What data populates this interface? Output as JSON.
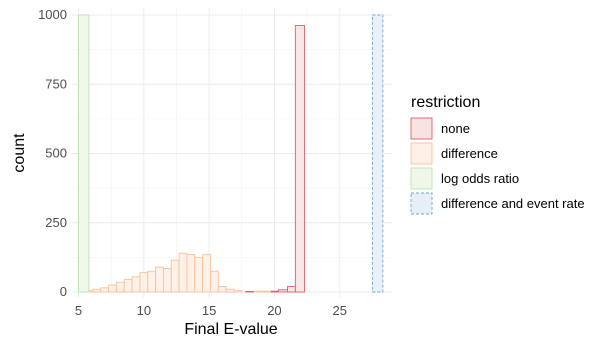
{
  "chart_data": {
    "type": "bar",
    "subtype": "overlapping-histogram",
    "xlabel": "Final E-value",
    "ylabel": "count",
    "xlim": [
      4.5,
      29.0
    ],
    "ylim": [
      0,
      1000
    ],
    "x_ticks": [
      5,
      10,
      15,
      20,
      25
    ],
    "y_ticks": [
      0,
      250,
      500,
      750,
      1000
    ],
    "grid": true,
    "bin_width": 0.625,
    "legend": {
      "title": "restriction",
      "placement": "right",
      "entries": [
        "none",
        "difference",
        "log odds ratio",
        "difference and event rate"
      ]
    },
    "series": [
      {
        "name": "none",
        "fill": "#f8e3e3",
        "stroke": "#d4636b",
        "dashed": false,
        "bins": [
          {
            "x0": 7.8,
            "x1": 8.4,
            "count": 8
          },
          {
            "x0": 17.8,
            "x1": 18.4,
            "count": 2
          },
          {
            "x0": 19.7,
            "x1": 20.3,
            "count": 3
          },
          {
            "x0": 20.3,
            "x1": 21.0,
            "count": 8
          },
          {
            "x0": 21.0,
            "x1": 21.6,
            "count": 20
          },
          {
            "x0": 21.6,
            "x1": 22.3,
            "count": 962
          }
        ]
      },
      {
        "name": "difference",
        "fill": "#fdf0e6",
        "stroke": "#f6c39d",
        "dashed": false,
        "bins": [
          {
            "x0": 5.5,
            "x1": 6.1,
            "count": 5
          },
          {
            "x0": 6.1,
            "x1": 6.7,
            "count": 10
          },
          {
            "x0": 6.7,
            "x1": 7.3,
            "count": 15
          },
          {
            "x0": 7.3,
            "x1": 7.9,
            "count": 25
          },
          {
            "x0": 7.9,
            "x1": 8.5,
            "count": 35
          },
          {
            "x0": 8.5,
            "x1": 9.1,
            "count": 45
          },
          {
            "x0": 9.1,
            "x1": 9.7,
            "count": 55
          },
          {
            "x0": 9.7,
            "x1": 10.3,
            "count": 70
          },
          {
            "x0": 10.3,
            "x1": 10.9,
            "count": 75
          },
          {
            "x0": 10.9,
            "x1": 11.5,
            "count": 90
          },
          {
            "x0": 11.5,
            "x1": 12.1,
            "count": 85
          },
          {
            "x0": 12.1,
            "x1": 12.7,
            "count": 115
          },
          {
            "x0": 12.7,
            "x1": 13.3,
            "count": 140
          },
          {
            "x0": 13.3,
            "x1": 13.9,
            "count": 135
          },
          {
            "x0": 13.9,
            "x1": 14.5,
            "count": 125
          },
          {
            "x0": 14.5,
            "x1": 15.1,
            "count": 135
          },
          {
            "x0": 15.1,
            "x1": 15.7,
            "count": 75
          },
          {
            "x0": 15.7,
            "x1": 16.3,
            "count": 20
          },
          {
            "x0": 16.3,
            "x1": 16.9,
            "count": 10
          },
          {
            "x0": 16.9,
            "x1": 17.5,
            "count": 5
          },
          {
            "x0": 18.5,
            "x1": 19.1,
            "count": 3
          },
          {
            "x0": 19.1,
            "x1": 19.7,
            "count": 3
          }
        ]
      },
      {
        "name": "log odds ratio",
        "fill": "#eef7ea",
        "stroke": "#bfe0b5",
        "dashed": false,
        "bins": [
          {
            "x0": 5.0,
            "x1": 5.8,
            "count": 1000
          }
        ]
      },
      {
        "name": "difference and event rate",
        "fill": "#e6eff6",
        "stroke": "#6fa6cf",
        "dashed": true,
        "bins": [
          {
            "x0": 27.5,
            "x1": 28.3,
            "count": 1000
          }
        ]
      }
    ]
  }
}
